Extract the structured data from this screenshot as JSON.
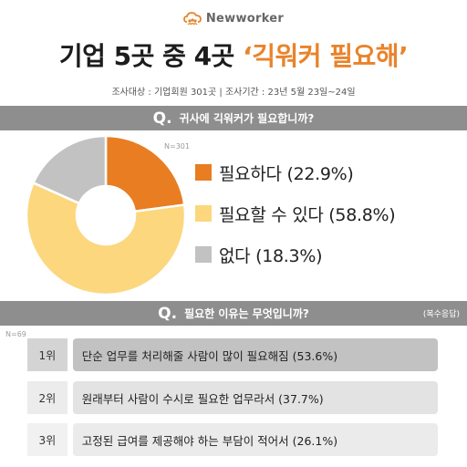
{
  "brand": {
    "name": "Newworker",
    "icon": "cloud-people-logo"
  },
  "headline": {
    "main": "기업 5곳 중 4곳",
    "accent": "‘긱워커 필요해’"
  },
  "survey_info": "조사대상 : 기업회원 301곳 |  조사기간 : 23년 5월 23일~24일",
  "question1": {
    "letter": "Q.",
    "text": "귀사에 긱워커가 필요합니까?",
    "n": "N=301"
  },
  "question2": {
    "letter": "Q.",
    "text": "필요한 이유는 무엇입니까?",
    "note": "(복수응답)",
    "n": "N=69"
  },
  "chart_data": [
    {
      "type": "pie",
      "style": "donut",
      "categories": [
        "필요하다",
        "필요할 수 있다",
        "없다"
      ],
      "values": [
        22.9,
        58.8,
        18.3
      ],
      "labels": [
        "필요하다 (22.9%)",
        "필요할 수 있다 (58.8%)",
        "없다 (18.3%)"
      ],
      "colors": [
        "#e87d22",
        "#fcd77e",
        "#c2c2c2"
      ],
      "legend": "right"
    },
    {
      "type": "table",
      "ranks": [
        "1위",
        "2위",
        "3위"
      ],
      "reasons": [
        "단순 업무를 처리해줄 사람이 많이 필요해짐",
        "원래부터 사람이 수시로 필요한 업무라서",
        "고정된 급여를 제공해야 하는 부담이 적어서"
      ],
      "values": [
        53.6,
        37.7,
        26.1
      ],
      "labels": [
        "단순 업무를 처리해줄 사람이 많이 필요해짐 (53.6%)",
        "원래부터 사람이 수시로 필요한 업무라서 (37.7%)",
        "고정된 급여를 제공해야 하는 부담이 적어서 (26.1%)"
      ]
    }
  ]
}
